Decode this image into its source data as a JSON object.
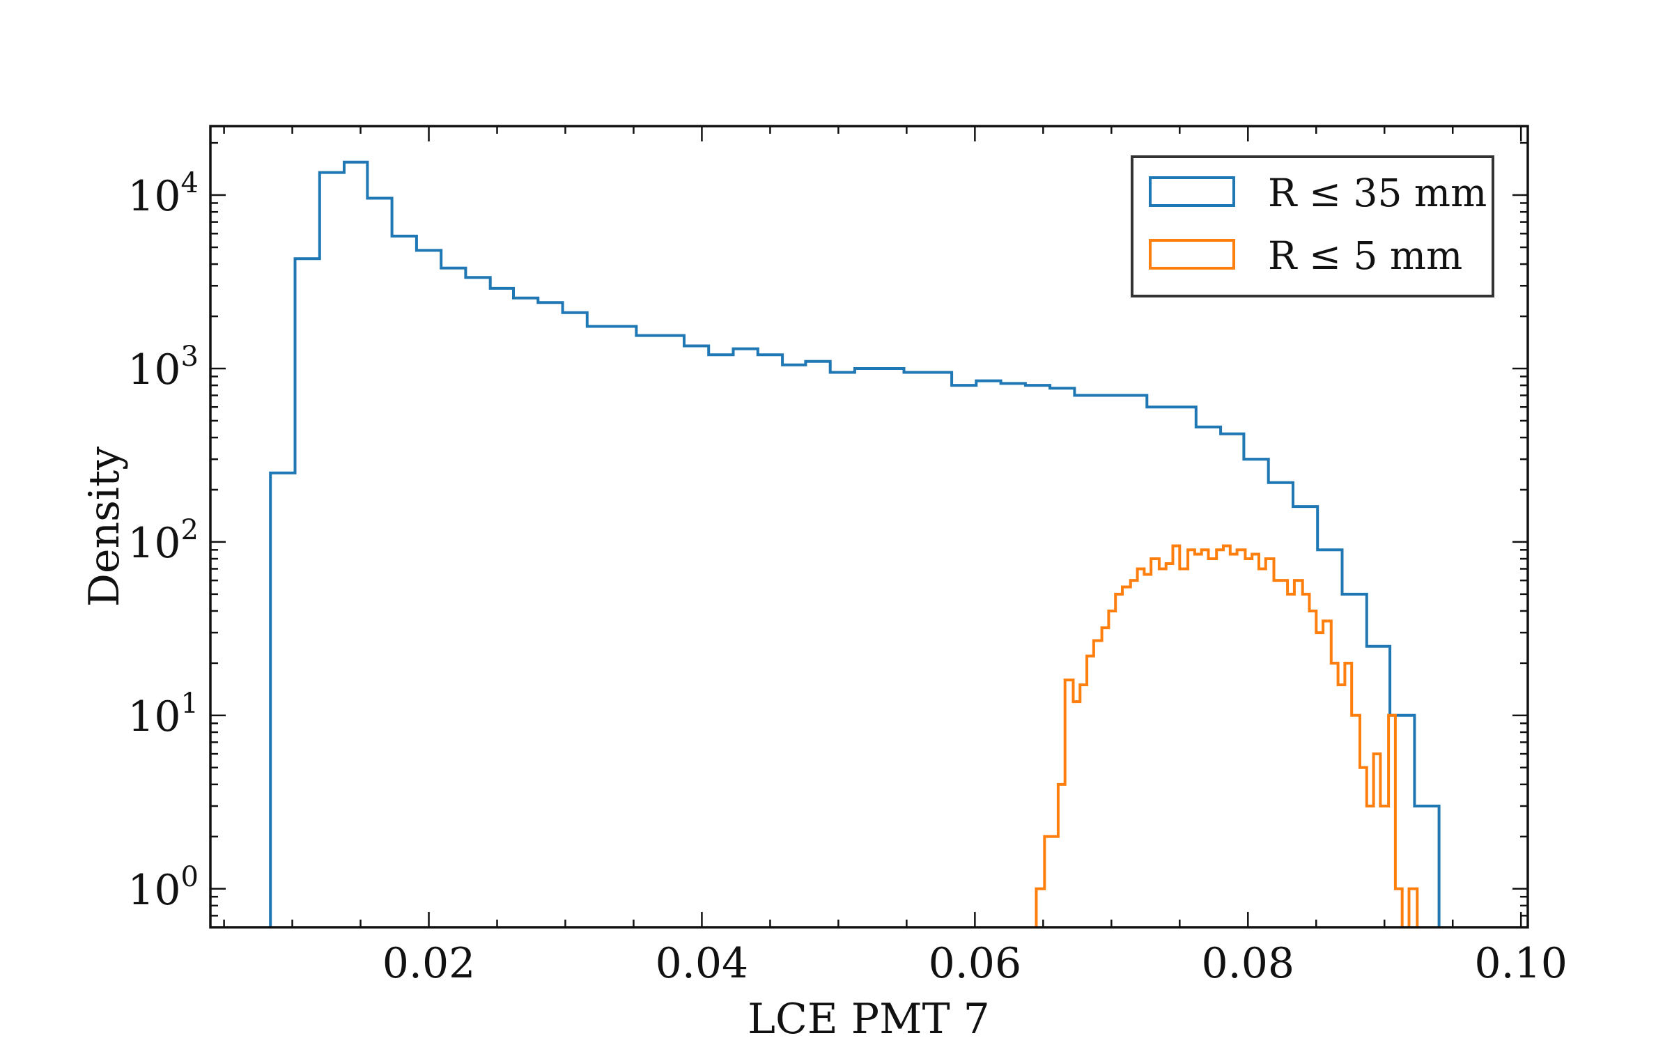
{
  "chart_data": {
    "type": "histogram",
    "xlabel": "LCE PMT 7",
    "ylabel": "Density",
    "xlim": [
      0.004,
      0.1005
    ],
    "ylim": [
      0.6,
      25000
    ],
    "y_scale": "log",
    "grid": false,
    "legend": {
      "placement": "top-right"
    },
    "x_ticks": [
      {
        "value": 0.02,
        "label": "0.02"
      },
      {
        "value": 0.04,
        "label": "0.04"
      },
      {
        "value": 0.06,
        "label": "0.06"
      },
      {
        "value": 0.08,
        "label": "0.08"
      },
      {
        "value": 0.1,
        "label": "0.10"
      }
    ],
    "y_ticks": [
      {
        "value": 1,
        "base": "10",
        "exp": "0"
      },
      {
        "value": 10,
        "base": "10",
        "exp": "1"
      },
      {
        "value": 100,
        "base": "10",
        "exp": "2"
      },
      {
        "value": 1000,
        "base": "10",
        "exp": "3"
      },
      {
        "value": 10000,
        "base": "10",
        "exp": "4"
      }
    ],
    "series": [
      {
        "name": "R ≤ 35 mm",
        "color": "#1f77b4",
        "bin_edges": [
          0.0084,
          0.0102,
          0.012,
          0.0138,
          0.0155,
          0.0173,
          0.0191,
          0.0209,
          0.0227,
          0.0245,
          0.0262,
          0.028,
          0.0298,
          0.0316,
          0.0334,
          0.0352,
          0.0369,
          0.0387,
          0.0405,
          0.0423,
          0.0441,
          0.0459,
          0.0476,
          0.0494,
          0.0512,
          0.053,
          0.0548,
          0.0566,
          0.0583,
          0.0601,
          0.0619,
          0.0637,
          0.0655,
          0.0673,
          0.069,
          0.0708,
          0.0726,
          0.0744,
          0.0762,
          0.078,
          0.0797,
          0.0815,
          0.0833,
          0.0851,
          0.0869,
          0.0887,
          0.0904,
          0.0922,
          0.094
        ],
        "values": [
          250,
          4300,
          13500,
          15500,
          9600,
          5800,
          4800,
          3800,
          3350,
          2900,
          2550,
          2400,
          2100,
          1750,
          1750,
          1550,
          1550,
          1350,
          1200,
          1300,
          1200,
          1050,
          1100,
          950,
          1000,
          1000,
          950,
          950,
          800,
          850,
          820,
          800,
          770,
          700,
          700,
          700,
          600,
          600,
          460,
          420,
          300,
          220,
          160,
          90,
          50,
          25,
          10,
          3,
          0.45
        ]
      },
      {
        "name": "R ≤ 5 mm",
        "color": "#ff7f0e",
        "bin_edges": [
          0.0645,
          0.0651,
          0.0656,
          0.0661,
          0.0666,
          0.0672,
          0.0677,
          0.0682,
          0.0687,
          0.0693,
          0.0698,
          0.0703,
          0.0708,
          0.0714,
          0.0719,
          0.0724,
          0.0729,
          0.0735,
          0.074,
          0.0745,
          0.075,
          0.0756,
          0.0761,
          0.0766,
          0.0771,
          0.0777,
          0.0782,
          0.0787,
          0.0792,
          0.0798,
          0.0803,
          0.0808,
          0.0813,
          0.0819,
          0.0824,
          0.0829,
          0.0834,
          0.084,
          0.0845,
          0.085,
          0.0855,
          0.0861,
          0.0866,
          0.0871,
          0.0876,
          0.0882,
          0.0887,
          0.0892,
          0.0897,
          0.0903,
          0.0908,
          0.0913,
          0.0918,
          0.0924,
          0.0929,
          0.0934,
          0.0939,
          0.0945,
          0.095,
          0.0955,
          0.096,
          0.0965
        ],
        "values": [
          1.0,
          2.0,
          2.0,
          4.0,
          16,
          12,
          15,
          22,
          27,
          32,
          40,
          50,
          55,
          60,
          70,
          65,
          80,
          70,
          75,
          95,
          70,
          90,
          85,
          90,
          80,
          90,
          95,
          85,
          90,
          80,
          85,
          70,
          80,
          60,
          60,
          50,
          60,
          50,
          40,
          30,
          35,
          20,
          15,
          20,
          10,
          5,
          3,
          6,
          3,
          10,
          1.0,
          0.45,
          1.0,
          0.45,
          0.45,
          0.45,
          0.45,
          0.45,
          0.45,
          0.45,
          0.45
        ]
      }
    ]
  }
}
